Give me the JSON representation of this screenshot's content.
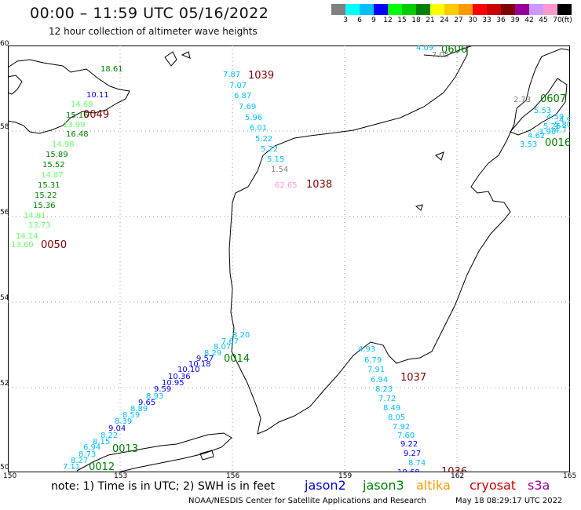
{
  "title": "00:00 – 11:59 UTC 05/16/2022",
  "subtitle": "12 hour collection of altimeter wave heights",
  "colorbar": {
    "colors": [
      "#808080",
      "#00ffff",
      "#00bfff",
      "#0000ff",
      "#00ff00",
      "#00cc00",
      "#008000",
      "#ffff00",
      "#ffcc00",
      "#ff9900",
      "#ff0000",
      "#cc0000",
      "#800000",
      "#990099",
      "#cc99ff",
      "#ff99cc",
      "#000000"
    ],
    "ticks": [
      "3",
      "6",
      "9",
      "12",
      "15",
      "18",
      "21",
      "24",
      "27",
      "30",
      "33",
      "36",
      "39",
      "42",
      "45",
      "70",
      "(ft)"
    ]
  },
  "map": {
    "lon_ticks": [
      "150",
      "153",
      "156",
      "159",
      "162",
      "165"
    ],
    "lat_ticks": [
      "60",
      "58",
      "56",
      "54",
      "52",
      "50"
    ],
    "tracks": [
      {
        "id": "t0606",
        "time": "0606",
        "time_color": "#008000",
        "points": [
          {
            "v": "4.09",
            "c": "#00bfff"
          },
          {
            "v": "7.05",
            "c": "#808080"
          }
        ]
      },
      {
        "id": "t1039",
        "time": "1039",
        "time_color": "#800000",
        "points": [
          {
            "v": "7.87",
            "c": "#00bfff"
          },
          {
            "v": "7.07",
            "c": "#00bfff"
          },
          {
            "v": "6.87",
            "c": "#00bfff"
          },
          {
            "v": "7.69",
            "c": "#00bfff"
          },
          {
            "v": "5.96",
            "c": "#00bfff"
          },
          {
            "v": "6.01",
            "c": "#00bfff"
          },
          {
            "v": "5.22",
            "c": "#00bfff"
          },
          {
            "v": "5.22",
            "c": "#00bfff"
          },
          {
            "v": "5.15",
            "c": "#00bfff"
          },
          {
            "v": "1.54",
            "c": "#808080"
          }
        ]
      },
      {
        "id": "t1038",
        "time": "1038",
        "time_color": "#800000",
        "points": [
          {
            "v": "62.65",
            "c": "#ff99cc"
          }
        ]
      },
      {
        "id": "t0049",
        "time": "0049",
        "time_color": "#800000",
        "points": [
          {
            "v": "18.61",
            "c": "#008000"
          },
          {
            "v": "10.11",
            "c": "#0000ff"
          },
          {
            "v": "14.69",
            "c": "#66ff66"
          },
          {
            "v": "15.16",
            "c": "#008000"
          },
          {
            "v": "13.99",
            "c": "#66ff66"
          },
          {
            "v": "16.48",
            "c": "#008000"
          },
          {
            "v": "14.98",
            "c": "#66ff66"
          },
          {
            "v": "15.89",
            "c": "#008000"
          },
          {
            "v": "15.52",
            "c": "#008000"
          },
          {
            "v": "14.87",
            "c": "#66ff66"
          },
          {
            "v": "15.31",
            "c": "#008000"
          },
          {
            "v": "15.22",
            "c": "#008000"
          },
          {
            "v": "15.36",
            "c": "#008000"
          },
          {
            "v": "14.81",
            "c": "#66ff66"
          },
          {
            "v": "13.73",
            "c": "#66ff66"
          },
          {
            "v": "14.14",
            "c": "#66ff66"
          },
          {
            "v": "13.60",
            "c": "#66ff66"
          }
        ]
      },
      {
        "id": "t0050",
        "time": "0050",
        "time_color": "#800000",
        "points": []
      },
      {
        "id": "t0607",
        "time": "0607",
        "time_color": "#008000",
        "points": [
          {
            "v": "2.73",
            "c": "#808080"
          },
          {
            "v": "5.53",
            "c": "#00bfff"
          },
          {
            "v": "4.59",
            "c": "#00bfff"
          },
          {
            "v": "4.91",
            "c": "#00bfff"
          },
          {
            "v": "5.80",
            "c": "#00bfff"
          },
          {
            "v": "5.26",
            "c": "#00bfff"
          },
          {
            "v": "3.96",
            "c": "#00bfff"
          },
          {
            "v": "4.7",
            "c": "#00bfff"
          },
          {
            "v": "4.62",
            "c": "#00bfff"
          },
          {
            "v": "3.53",
            "c": "#00bfff"
          }
        ]
      },
      {
        "id": "t0016",
        "time": "0016",
        "time_color": "#008000",
        "points": []
      },
      {
        "id": "t0014",
        "time": "0014",
        "time_color": "#008000",
        "points": [
          {
            "v": "8.20",
            "c": "#00bfff"
          },
          {
            "v": "7.67",
            "c": "#00bfff"
          },
          {
            "v": "8.07",
            "c": "#00bfff"
          },
          {
            "v": "8.29",
            "c": "#00bfff"
          },
          {
            "v": "9.57",
            "c": "#0000ff"
          },
          {
            "v": "10.18",
            "c": "#0000ff"
          },
          {
            "v": "10.10",
            "c": "#0000ff"
          },
          {
            "v": "10.36",
            "c": "#0000ff"
          },
          {
            "v": "10.95",
            "c": "#0000ff"
          },
          {
            "v": "9.59",
            "c": "#0000ff"
          },
          {
            "v": "8.93",
            "c": "#00bfff"
          },
          {
            "v": "9.65",
            "c": "#0000ff"
          },
          {
            "v": "8.89",
            "c": "#00bfff"
          },
          {
            "v": "8.59",
            "c": "#00bfff"
          },
          {
            "v": "8.39",
            "c": "#00bfff"
          },
          {
            "v": "9.04",
            "c": "#0000ff"
          },
          {
            "v": "8.22",
            "c": "#00bfff"
          },
          {
            "v": "8.15",
            "c": "#00bfff"
          },
          {
            "v": "6.94",
            "c": "#00bfff"
          },
          {
            "v": "8.73",
            "c": "#00bfff"
          },
          {
            "v": "8.27",
            "c": "#00bfff"
          },
          {
            "v": "7.11",
            "c": "#00bfff"
          }
        ]
      },
      {
        "id": "t0013",
        "time": "0013",
        "time_color": "#008000",
        "points": []
      },
      {
        "id": "t0012",
        "time": "0012",
        "time_color": "#008000",
        "points": []
      },
      {
        "id": "t1037",
        "time": "1037",
        "time_color": "#800000",
        "points": [
          {
            "v": "4.93",
            "c": "#00bfff"
          },
          {
            "v": "6.79",
            "c": "#00bfff"
          },
          {
            "v": "7.91",
            "c": "#00bfff"
          },
          {
            "v": "6.94",
            "c": "#00bfff"
          },
          {
            "v": "8.23",
            "c": "#00bfff"
          },
          {
            "v": "7.72",
            "c": "#00bfff"
          },
          {
            "v": "8.49",
            "c": "#00bfff"
          },
          {
            "v": "8.05",
            "c": "#00bfff"
          },
          {
            "v": "7.92",
            "c": "#00bfff"
          },
          {
            "v": "7.60",
            "c": "#00bfff"
          },
          {
            "v": "9.22",
            "c": "#0000ff"
          },
          {
            "v": "9.27",
            "c": "#0000ff"
          },
          {
            "v": "8.74",
            "c": "#00bfff"
          },
          {
            "v": "10.68",
            "c": "#0000ff"
          }
        ]
      },
      {
        "id": "t1036",
        "time": "1036",
        "time_color": "#800000",
        "points": []
      }
    ]
  },
  "note": "note:  1) Time is in UTC;  2) SWH is in feet",
  "satellites": [
    {
      "name": "jason2",
      "color": "#0000cc"
    },
    {
      "name": "jason3",
      "color": "#008000"
    },
    {
      "name": "altika",
      "color": "#ff9900"
    },
    {
      "name": "cryosat",
      "color": "#cc0000"
    },
    {
      "name": "s3a",
      "color": "#990099"
    }
  ],
  "footer": "NOAA/NESDIS Center for Satellite Applications and Research",
  "timestamp": "May 18 08:29:17 UTC 2022"
}
